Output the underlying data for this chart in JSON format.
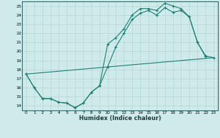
{
  "xlabel": "Humidex (Indice chaleur)",
  "bg_color": "#ceeaea",
  "grid_color_major": "#b8d8d8",
  "grid_color_minor": "#d0e8e8",
  "line_color": "#1a7a6e",
  "xlim": [
    -0.5,
    23.5
  ],
  "ylim": [
    13.5,
    25.5
  ],
  "xticks": [
    0,
    1,
    2,
    3,
    4,
    5,
    6,
    7,
    8,
    9,
    10,
    11,
    12,
    13,
    14,
    15,
    16,
    17,
    18,
    19,
    20,
    21,
    22,
    23
  ],
  "yticks": [
    14,
    15,
    16,
    17,
    18,
    19,
    20,
    21,
    22,
    23,
    24,
    25
  ],
  "line1_x": [
    0,
    1,
    2,
    3,
    4,
    5,
    6,
    7,
    8,
    9,
    10,
    11,
    12,
    13,
    14,
    15,
    16,
    17,
    18,
    19,
    20,
    21,
    22
  ],
  "line1_y": [
    17.5,
    16.0,
    14.8,
    14.8,
    14.4,
    14.3,
    13.8,
    14.3,
    15.5,
    16.2,
    20.8,
    21.5,
    22.5,
    24.0,
    24.7,
    24.7,
    24.5,
    25.3,
    25.0,
    24.7,
    23.8,
    21.0,
    19.4
  ],
  "line2_x": [
    0,
    1,
    2,
    3,
    4,
    5,
    6,
    7,
    8,
    9,
    10,
    11,
    12,
    13,
    14,
    15,
    16,
    17,
    18,
    19,
    20,
    21,
    22,
    23
  ],
  "line2_y": [
    17.5,
    16.0,
    14.8,
    14.8,
    14.4,
    14.3,
    13.8,
    14.3,
    15.5,
    16.2,
    18.3,
    20.5,
    22.0,
    23.5,
    24.2,
    24.5,
    24.0,
    24.8,
    24.3,
    24.5,
    23.8,
    21.0,
    19.5,
    19.3
  ],
  "line3_x": [
    0,
    23
  ],
  "line3_y": [
    17.5,
    19.3
  ]
}
